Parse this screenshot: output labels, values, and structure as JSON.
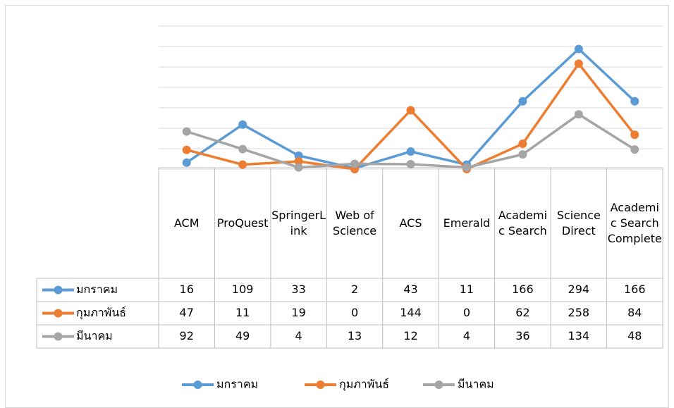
{
  "chart_data": {
    "type": "line",
    "categories": [
      "ACM",
      "ProQuest",
      "SpringerLink",
      "Web of Science",
      "ACS",
      "Emerald",
      "Academic Search",
      "Science Direct",
      "Academic Search Complete"
    ],
    "series": [
      {
        "name": "มกราคม",
        "color": "#5b9bd5",
        "values": [
          16,
          109,
          33,
          2,
          43,
          11,
          166,
          294,
          166
        ]
      },
      {
        "name": "กุมภาพันธ์",
        "color": "#ed7d31",
        "values": [
          47,
          11,
          19,
          0,
          144,
          0,
          62,
          258,
          84
        ]
      },
      {
        "name": "มีนาคม",
        "color": "#a5a5a5",
        "values": [
          92,
          49,
          4,
          13,
          12,
          4,
          36,
          134,
          48
        ]
      }
    ],
    "ylim": [
      0,
      350
    ],
    "yticks": [
      0,
      50,
      100,
      150,
      200,
      250,
      300,
      350
    ],
    "grid": true,
    "data_table": true,
    "legend": "bottom"
  }
}
